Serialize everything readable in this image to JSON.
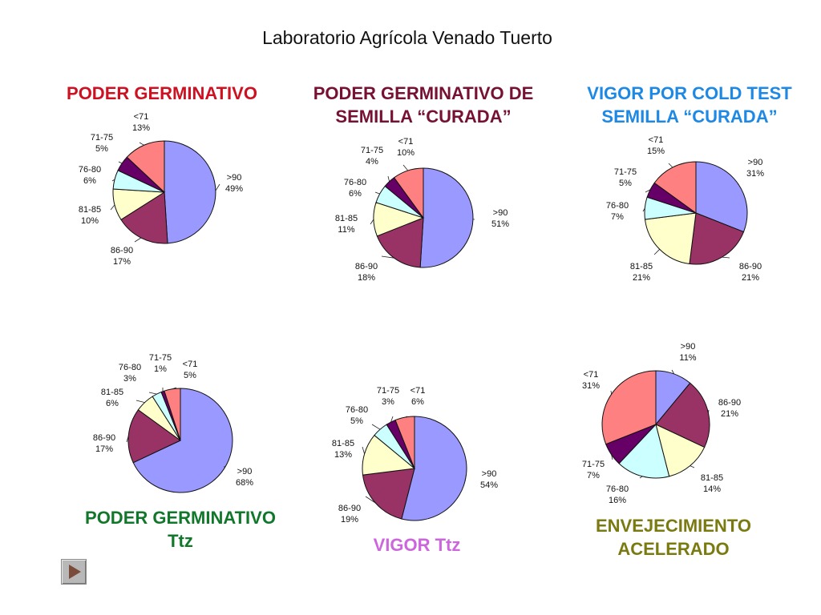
{
  "page": {
    "title": "Laboratorio Agrícola Venado Tuerto"
  },
  "chart_titles": [
    {
      "lines": [
        "PODER GERMINATIVO"
      ],
      "color": "#cc1122"
    },
    {
      "lines": [
        "PODER GERMINATIVO DE",
        "SEMILLA “CURADA”"
      ],
      "color": "#771133"
    },
    {
      "lines": [
        "VIGOR POR COLD TEST",
        "SEMILLA “CURADA”"
      ],
      "color": "#1e88e5"
    },
    {
      "lines": [
        "PODER GERMINATIVO",
        "Ttz"
      ],
      "color": "#11772a"
    },
    {
      "lines": [
        "VIGOR Ttz"
      ],
      "color": "#cc66dd"
    },
    {
      "lines": [
        "ENVEJECIMIENTO",
        "ACELERADO"
      ],
      "color": "#7a7a10"
    }
  ],
  "colors": {
    ">90": "#9999ff",
    "86-90": "#993366",
    "81-85": "#ffffcc",
    "76-80": "#ccffff",
    "71-75": "#660066",
    "<71": "#ff8080"
  },
  "chart_data": [
    {
      "type": "pie",
      "title": "PODER GERMINATIVO",
      "slices": [
        {
          "label": ">90",
          "pct": "49%",
          "value": 49
        },
        {
          "label": "86-90",
          "pct": "17%",
          "value": 17
        },
        {
          "label": "81-85",
          "pct": "10%",
          "value": 10
        },
        {
          "label": "76-80",
          "pct": "6%",
          "value": 6
        },
        {
          "label": "71-75",
          "pct": "5%",
          "value": 5
        },
        {
          "label": "<71",
          "pct": "13%",
          "value": 13
        }
      ]
    },
    {
      "type": "pie",
      "title": "PODER GERMINATIVO DE SEMILLA “CURADA”",
      "slices": [
        {
          "label": ">90",
          "pct": "51%",
          "value": 51
        },
        {
          "label": "86-90",
          "pct": "18%",
          "value": 18
        },
        {
          "label": "81-85",
          "pct": "11%",
          "value": 11
        },
        {
          "label": "76-80",
          "pct": "6%",
          "value": 6
        },
        {
          "label": "71-75",
          "pct": "4%",
          "value": 4
        },
        {
          "label": "<71",
          "pct": "10%",
          "value": 10
        }
      ]
    },
    {
      "type": "pie",
      "title": "VIGOR POR COLD TEST SEMILLA “CURADA”",
      "slices": [
        {
          "label": ">90",
          "pct": "31%",
          "value": 31
        },
        {
          "label": "86-90",
          "pct": "21%",
          "value": 21
        },
        {
          "label": "81-85",
          "pct": "21%",
          "value": 21
        },
        {
          "label": "76-80",
          "pct": "7%",
          "value": 7
        },
        {
          "label": "71-75",
          "pct": "5%",
          "value": 5
        },
        {
          "label": "<71",
          "pct": "15%",
          "value": 15
        }
      ]
    },
    {
      "type": "pie",
      "title": "PODER GERMINATIVO Ttz",
      "slices": [
        {
          "label": ">90",
          "pct": "68%",
          "value": 68
        },
        {
          "label": "86-90",
          "pct": "17%",
          "value": 17
        },
        {
          "label": "81-85",
          "pct": "6%",
          "value": 6
        },
        {
          "label": "76-80",
          "pct": "3%",
          "value": 3
        },
        {
          "label": "71-75",
          "pct": "1%",
          "value": 1
        },
        {
          "label": "<71",
          "pct": "5%",
          "value": 5
        }
      ]
    },
    {
      "type": "pie",
      "title": "VIGOR Ttz",
      "slices": [
        {
          "label": ">90",
          "pct": "54%",
          "value": 54
        },
        {
          "label": "86-90",
          "pct": "19%",
          "value": 19
        },
        {
          "label": "81-85",
          "pct": "13%",
          "value": 13
        },
        {
          "label": "76-80",
          "pct": "5%",
          "value": 5
        },
        {
          "label": "71-75",
          "pct": "3%",
          "value": 3
        },
        {
          "label": "<71",
          "pct": "6%",
          "value": 6
        }
      ]
    },
    {
      "type": "pie",
      "title": "ENVEJECIMIENTO ACELERADO",
      "slices": [
        {
          "label": ">90",
          "pct": "11%",
          "value": 11
        },
        {
          "label": "86-90",
          "pct": "21%",
          "value": 21
        },
        {
          "label": "81-85",
          "pct": "14%",
          "value": 14
        },
        {
          "label": "76-80",
          "pct": "16%",
          "value": 16
        },
        {
          "label": "71-75",
          "pct": "7%",
          "value": 7
        },
        {
          "label": "<71",
          "pct": "31%",
          "value": 31
        }
      ]
    }
  ],
  "controls": {
    "next_icon": "play-triangle-icon"
  }
}
